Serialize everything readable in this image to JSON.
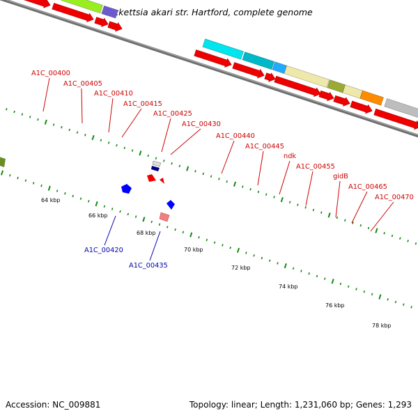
{
  "title": "Rickettsia akari str. Hartford, complete genome",
  "footer": {
    "accession": "Accession: NC_009881",
    "topology": "Topology: linear; Length: 1,231,060 bp; Genes: 1,293"
  },
  "colors": {
    "forward_label": "#cc0000",
    "reverse_label": "#0000aa",
    "cds_strand": "#ee0000",
    "backbone": "#808080",
    "tick": "#118811"
  },
  "axis_labels": [
    "64 kbp",
    "66 kbp",
    "68 kbp",
    "70 kbp",
    "72 kbp",
    "74 kbp",
    "76 kbp",
    "78 kbp"
  ],
  "gene_labels_top": [
    "A1C_00400",
    "A1C_00405",
    "A1C_00410",
    "A1C_00415",
    "A1C_00425",
    "A1C_00430",
    "A1C_00440",
    "A1C_00445",
    "ndk",
    "A1C_00455",
    "gidB",
    "A1C_00465",
    "A1C_00470"
  ],
  "gene_labels_bottom": [
    "A1C_00420",
    "A1C_00435"
  ],
  "cog_colors": {
    "olive": "#6b8e23",
    "lime": "#99ee22",
    "slate": "#6a5acd",
    "cyan": "#00e5ee",
    "teal": "#00b8c8",
    "sky": "#22aaff",
    "khaki": "#eee8aa",
    "ochre": "#9aaa33",
    "orange": "#ff8c00",
    "gray": "#bdbdbd",
    "blue": "#0000ff",
    "navy": "#000080",
    "salmon": "#f08080"
  }
}
